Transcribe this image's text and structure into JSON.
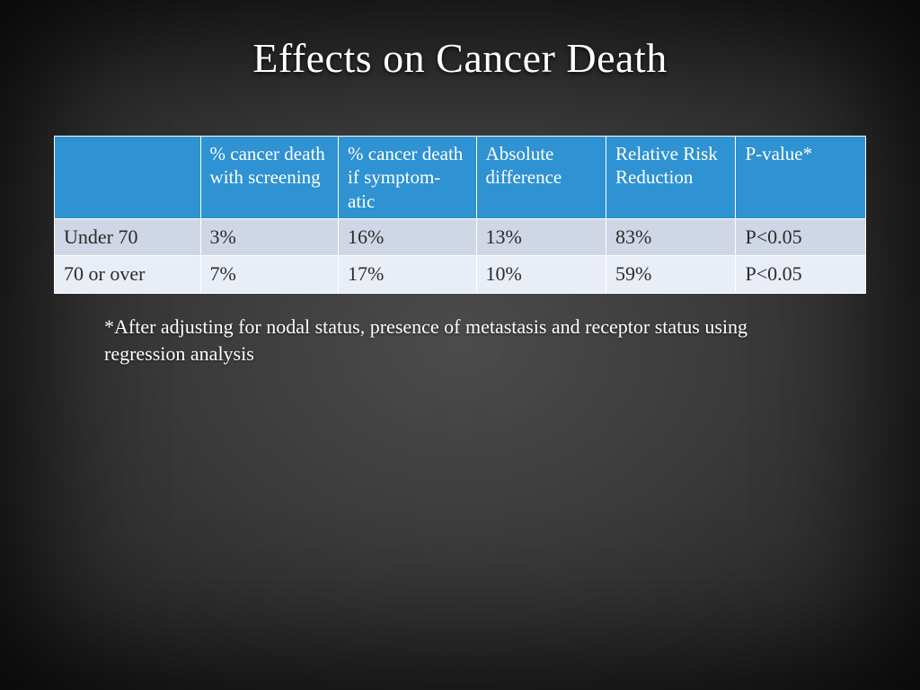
{
  "title": "Effects on Cancer Death",
  "table": {
    "header_bg": "#2e92d3",
    "header_text_color": "#ffffff",
    "row_bg_alt": [
      "#cfd6e5",
      "#e9edf6"
    ],
    "row_text_color": "#2b2b2b",
    "cell_border_color": "#ffffff",
    "col_widths_pct": [
      18,
      17,
      17,
      16,
      16,
      16
    ],
    "columns": [
      "",
      "% cancer death with screening",
      "% cancer death if symptom-atic",
      "Absolute difference",
      "Relative Risk Reduction",
      "P-value*"
    ],
    "rows": [
      [
        "Under 70",
        "3%",
        "16%",
        "13%",
        "83%",
        "P<0.05"
      ],
      [
        "70 or over",
        "7%",
        "17%",
        "10%",
        "59%",
        "P<0.05"
      ]
    ]
  },
  "footnote": "*After adjusting for nodal status, presence of metastasis and receptor status using regression analysis"
}
